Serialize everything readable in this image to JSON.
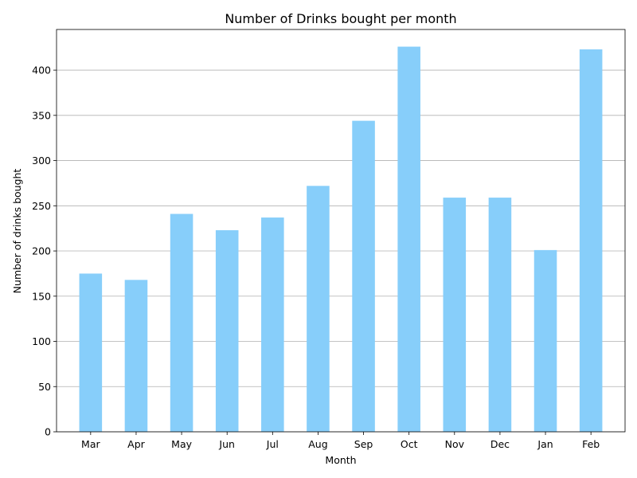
{
  "chart_data": {
    "type": "bar",
    "title": "Number of Drinks bought per month",
    "xlabel": "Month",
    "ylabel": "Number of drinks bought",
    "categories": [
      "Mar",
      "Apr",
      "May",
      "Jun",
      "Jul",
      "Aug",
      "Sep",
      "Oct",
      "Nov",
      "Dec",
      "Jan",
      "Feb"
    ],
    "values": [
      175,
      168,
      241,
      223,
      237,
      272,
      344,
      426,
      259,
      259,
      201,
      423
    ],
    "ylim": [
      0,
      445
    ],
    "yticks": [
      0,
      50,
      100,
      150,
      200,
      250,
      300,
      350,
      400
    ],
    "grid": "y",
    "legend": "none",
    "bar_color": "#87cefa"
  }
}
